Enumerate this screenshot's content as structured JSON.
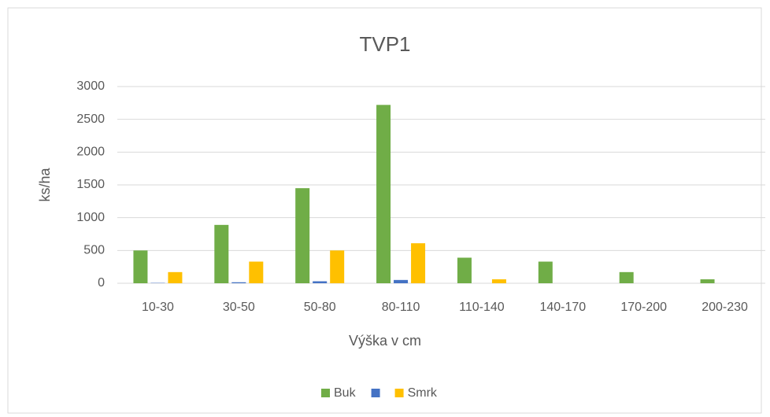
{
  "chart_data": {
    "type": "bar",
    "title": "TVP1",
    "x_label": "Výška v cm",
    "y_label": "ks/ha",
    "categories": [
      "10-30",
      "30-50",
      "50-80",
      "80-110",
      "110-140",
      "140-170",
      "170-200",
      "200-230"
    ],
    "series": [
      {
        "name": "Buk",
        "color": "#70ad47",
        "values": [
          500,
          890,
          1450,
          2720,
          390,
          330,
          170,
          60
        ]
      },
      {
        "color": "#4472c4",
        "values": [
          5,
          15,
          30,
          50,
          0,
          0,
          0,
          0
        ]
      },
      {
        "name": "Smrk",
        "color": "#ffc000",
        "values": [
          170,
          330,
          500,
          610,
          60,
          0,
          0,
          0
        ]
      }
    ],
    "ylim": [
      0,
      3000
    ],
    "yticks": [
      0,
      500,
      1000,
      1500,
      2000,
      2500,
      3000
    ],
    "grid": true,
    "legend": "bottom"
  }
}
